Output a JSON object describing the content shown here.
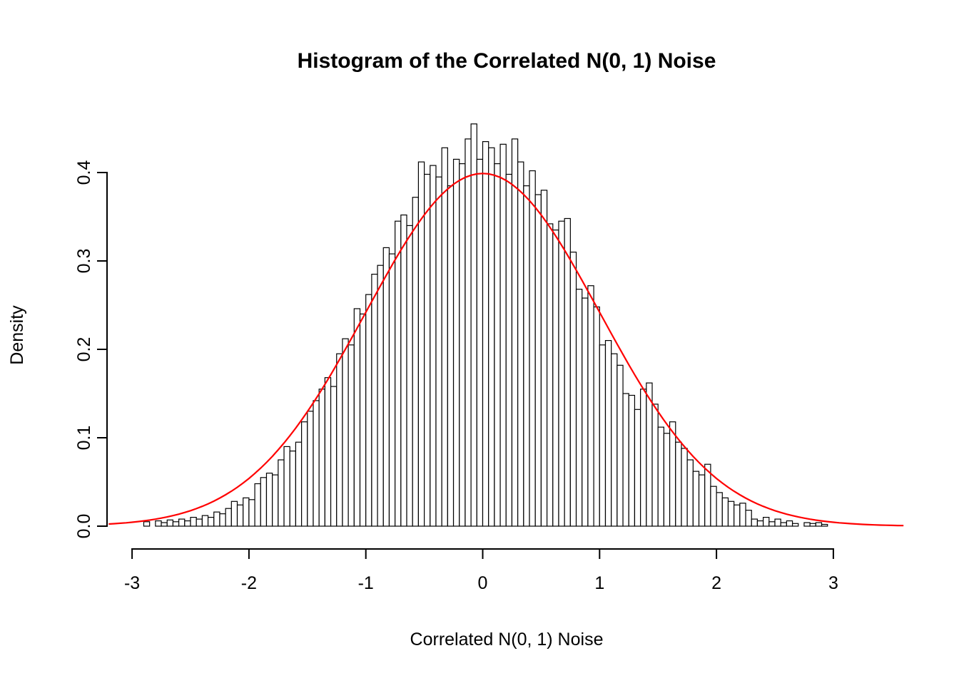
{
  "chart_data": {
    "type": "histogram",
    "title": "Histogram of the Correlated N(0, 1) Noise",
    "xlabel": "Correlated N(0, 1) Noise",
    "ylabel": "Density",
    "x_tick_values": [
      -3,
      -2,
      -1,
      0,
      1,
      2,
      3
    ],
    "x_tick_labels": [
      "-3",
      "-2",
      "-1",
      "0",
      "1",
      "2",
      "3"
    ],
    "y_tick_values": [
      0,
      0.1,
      0.2,
      0.3,
      0.4
    ],
    "y_tick_labels": [
      "0.0",
      "0.1",
      "0.2",
      "0.3",
      "0.4"
    ],
    "xlim": [
      -3.2,
      3.6
    ],
    "ylim": [
      0,
      0.46
    ],
    "grid": false,
    "legend": "none",
    "bar_fill": "#FFFFFF",
    "bar_stroke": "#000000",
    "axis_color": "#000000",
    "bins": {
      "start": -2.9,
      "width": 0.05,
      "heights": [
        0.005,
        0,
        0.006,
        0.004,
        0.007,
        0.005,
        0.008,
        0.006,
        0.01,
        0.008,
        0.012,
        0.01,
        0.016,
        0.014,
        0.02,
        0.028,
        0.024,
        0.032,
        0.03,
        0.048,
        0.055,
        0.06,
        0.058,
        0.075,
        0.09,
        0.085,
        0.095,
        0.118,
        0.13,
        0.142,
        0.155,
        0.168,
        0.158,
        0.195,
        0.212,
        0.205,
        0.246,
        0.24,
        0.262,
        0.285,
        0.295,
        0.315,
        0.308,
        0.345,
        0.352,
        0.34,
        0.372,
        0.412,
        0.398,
        0.408,
        0.395,
        0.428,
        0.385,
        0.415,
        0.41,
        0.438,
        0.455,
        0.415,
        0.435,
        0.428,
        0.41,
        0.432,
        0.398,
        0.438,
        0.412,
        0.385,
        0.402,
        0.375,
        0.38,
        0.342,
        0.335,
        0.345,
        0.348,
        0.31,
        0.268,
        0.258,
        0.272,
        0.248,
        0.205,
        0.21,
        0.195,
        0.182,
        0.15,
        0.148,
        0.132,
        0.155,
        0.162,
        0.138,
        0.112,
        0.105,
        0.118,
        0.095,
        0.088,
        0.075,
        0.062,
        0.058,
        0.07,
        0.045,
        0.038,
        0.032,
        0.028,
        0.024,
        0.026,
        0.018,
        0.008,
        0.006,
        0.01,
        0.005,
        0.008,
        0.004,
        0.006,
        0.003,
        0,
        0.004,
        0.003,
        0.004,
        0.002
      ]
    },
    "curve": {
      "type": "normal-density",
      "mean": 0,
      "sd": 1,
      "color": "#FF0000",
      "x_range": [
        -3.2,
        3.6
      ]
    }
  }
}
